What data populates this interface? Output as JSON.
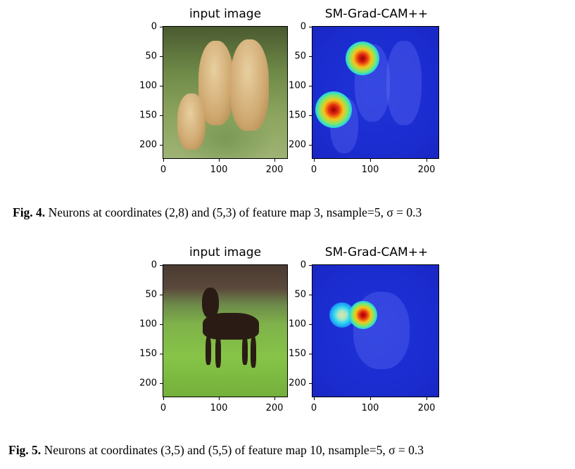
{
  "figures": [
    {
      "left_title": "input image",
      "right_title": "SM-Grad-CAM++",
      "y_ticks": [
        "0",
        "50",
        "100",
        "150",
        "200"
      ],
      "x_ticks": [
        "0",
        "100",
        "200"
      ],
      "caption_label": "Fig. 4.",
      "caption_text": "Neurons at coordinates (2,8) and (5,3) of feature map 3, nsample=5, σ = 0.3"
    },
    {
      "left_title": "input image",
      "right_title": "SM-Grad-CAM++",
      "y_ticks": [
        "0",
        "50",
        "100",
        "150",
        "200"
      ],
      "x_ticks": [
        "0",
        "100",
        "200"
      ],
      "caption_label": "Fig. 5.",
      "caption_text": "Neurons at coordinates (3,5) and (5,5) of feature map 10, nsample=5, σ = 0.3"
    }
  ]
}
